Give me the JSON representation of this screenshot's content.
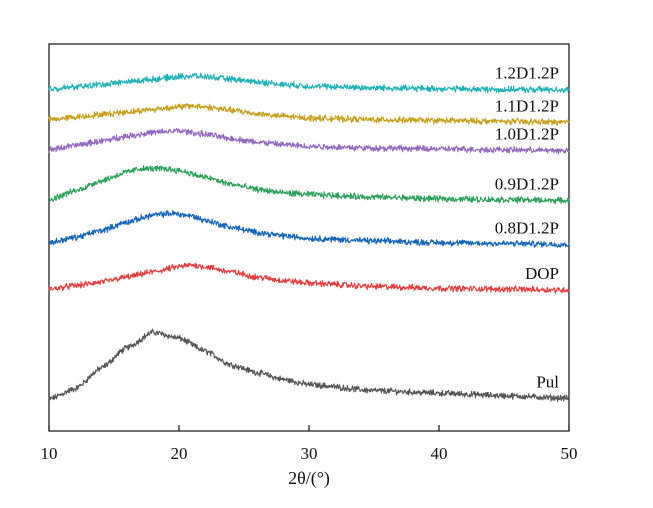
{
  "chart_data": {
    "type": "line",
    "xlabel": "2θ/(°)",
    "ylabel": "",
    "xlim": [
      10,
      50
    ],
    "x_ticks": [
      "10",
      "20",
      "30",
      "40",
      "50"
    ],
    "y_ticks": [],
    "grid": false,
    "legend": "labels at right end of each curve",
    "series": [
      {
        "name": "Pul",
        "color": "#555555",
        "x": [
          10,
          12,
          14,
          16,
          18,
          20,
          22,
          24,
          26,
          28,
          30,
          35,
          40,
          45,
          50
        ],
        "y": [
          0.02,
          0.14,
          0.38,
          0.62,
          0.8,
          0.73,
          0.58,
          0.42,
          0.33,
          0.25,
          0.19,
          0.12,
          0.09,
          0.06,
          0.03
        ]
      },
      {
        "name": "DOP",
        "color": "#e04040",
        "x": [
          10,
          12,
          14,
          16,
          18,
          20,
          21,
          22,
          24,
          26,
          28,
          30,
          35,
          40,
          45,
          50
        ],
        "y": [
          1.3,
          1.34,
          1.38,
          1.44,
          1.5,
          1.56,
          1.58,
          1.56,
          1.5,
          1.44,
          1.4,
          1.37,
          1.33,
          1.31,
          1.3,
          1.29
        ]
      },
      {
        "name": "0.8D1.2P",
        "color": "#1565b8",
        "x": [
          10,
          12,
          14,
          16,
          18,
          19.5,
          21,
          22,
          24,
          26,
          28,
          30,
          35,
          40,
          45,
          50
        ],
        "y": [
          1.84,
          1.9,
          1.98,
          2.08,
          2.16,
          2.18,
          2.15,
          2.1,
          2.02,
          1.96,
          1.92,
          1.89,
          1.86,
          1.84,
          1.83,
          1.82
        ]
      },
      {
        "name": "0.9D1.2P",
        "color": "#2ea05a",
        "x": [
          10,
          12,
          14,
          16,
          17,
          19,
          20,
          22,
          24,
          26,
          28,
          30,
          35,
          40,
          45,
          50
        ],
        "y": [
          2.34,
          2.44,
          2.56,
          2.66,
          2.7,
          2.7,
          2.68,
          2.6,
          2.52,
          2.46,
          2.42,
          2.4,
          2.37,
          2.35,
          2.34,
          2.33
        ]
      },
      {
        "name": "1.0D1.2P",
        "color": "#9468be",
        "x": [
          10,
          12,
          14,
          16,
          18,
          20,
          22,
          24,
          26,
          28,
          30,
          35,
          40,
          45,
          50
        ],
        "y": [
          2.92,
          2.97,
          3.02,
          3.08,
          3.12,
          3.14,
          3.1,
          3.05,
          3.01,
          2.98,
          2.96,
          2.94,
          2.93,
          2.92,
          2.91
        ]
      },
      {
        "name": "1.1D1.2P",
        "color": "#c7a020",
        "x": [
          10,
          12,
          14,
          16,
          18,
          20,
          21,
          22,
          24,
          26,
          28,
          30,
          35,
          40,
          45,
          50
        ],
        "y": [
          3.27,
          3.3,
          3.33,
          3.36,
          3.39,
          3.42,
          3.43,
          3.42,
          3.38,
          3.34,
          3.31,
          3.29,
          3.27,
          3.26,
          3.25,
          3.24
        ]
      },
      {
        "name": "1.2D1.2P",
        "color": "#20b2b8",
        "x": [
          10,
          12,
          14,
          16,
          18,
          20,
          21,
          22,
          24,
          26,
          28,
          30,
          35,
          40,
          45,
          50
        ],
        "y": [
          3.63,
          3.65,
          3.68,
          3.71,
          3.74,
          3.77,
          3.78,
          3.77,
          3.74,
          3.71,
          3.68,
          3.66,
          3.64,
          3.63,
          3.62,
          3.62
        ]
      }
    ]
  }
}
